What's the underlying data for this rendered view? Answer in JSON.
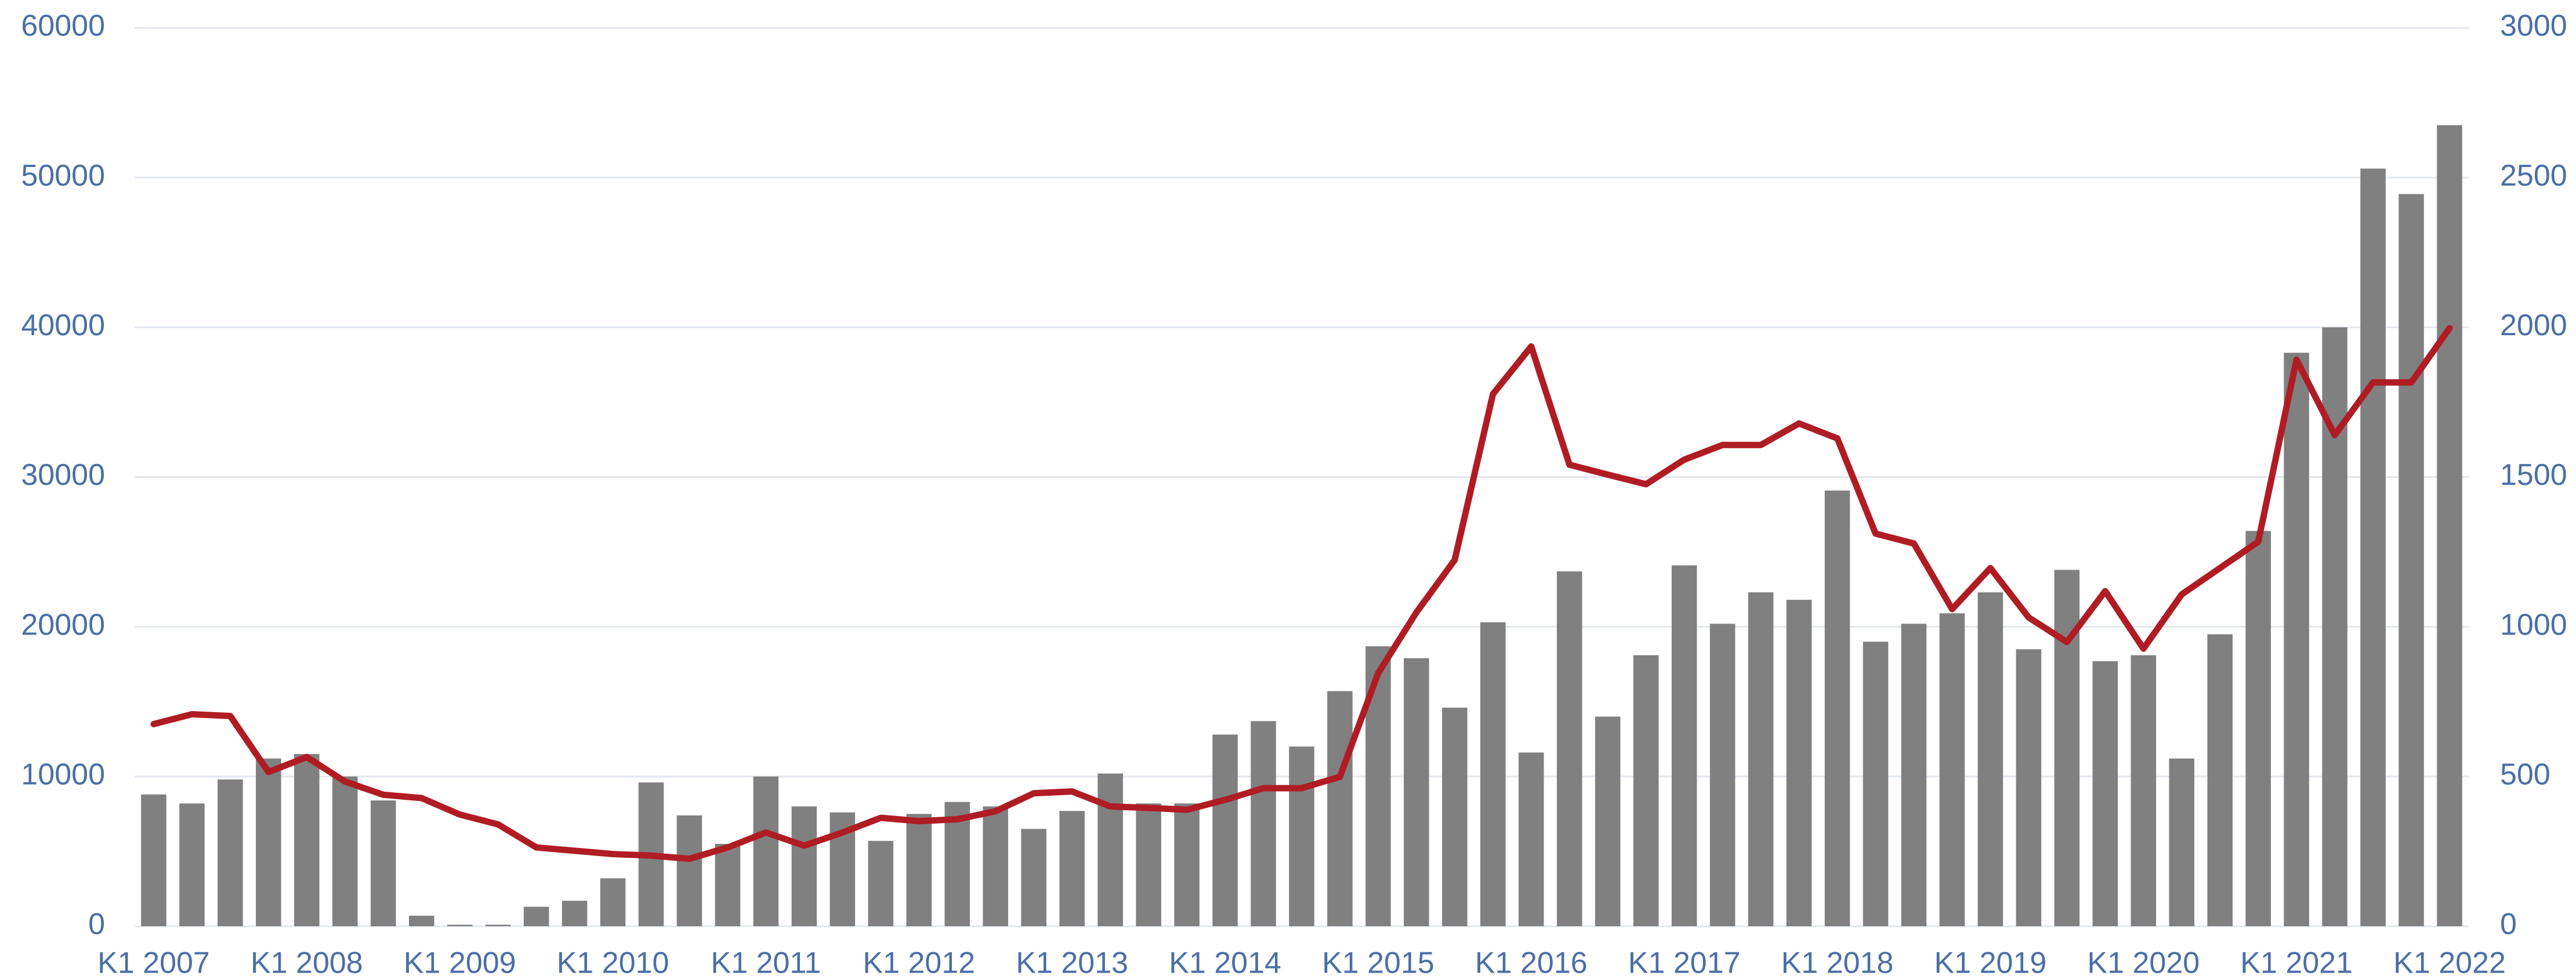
{
  "chart_data": {
    "type": "bar_line",
    "categories": [
      "K1 2007",
      null,
      null,
      null,
      "K1 2008",
      null,
      null,
      null,
      "K1 2009",
      null,
      null,
      null,
      "K1 2010",
      null,
      null,
      null,
      "K1 2011",
      null,
      null,
      null,
      "K1 2012",
      null,
      null,
      null,
      "K1 2013",
      null,
      null,
      null,
      "K1 2014",
      null,
      null,
      null,
      "K1 2015",
      null,
      null,
      null,
      "K1 2016",
      null,
      null,
      null,
      "K1 2017",
      null,
      null,
      null,
      "K1 2018",
      null,
      null,
      null,
      "K1 2019",
      null,
      null,
      null,
      "K1 2020",
      null,
      null,
      null,
      "K1 2021",
      null,
      null,
      null,
      "K1 2022"
    ],
    "series": [
      {
        "type": "bar",
        "color": "#808080",
        "values": [
          8800,
          8200,
          9800,
          11200,
          11500,
          10000,
          8400,
          700,
          100,
          100,
          1300,
          1700,
          3200,
          9600,
          7400,
          5500,
          10000,
          8000,
          7600,
          5700,
          7500,
          8300,
          8000,
          6500,
          7700,
          10200,
          8200,
          8200,
          12800,
          13700,
          12000,
          15700,
          18700,
          17900,
          14600,
          20300,
          11600,
          23700,
          14000,
          18100,
          24100,
          20200,
          22300,
          21800,
          29100,
          19000,
          20200,
          20900,
          22300,
          18500,
          23800,
          17700,
          18100,
          11200,
          19500,
          26400,
          38300,
          40000,
          50600,
          48900,
          53500
        ]
      },
      {
        "type": "line",
        "axis": "y2",
        "color": "#b01c23",
        "values": [
          675,
          708,
          702,
          515,
          565,
          483,
          439,
          428,
          373,
          340,
          263,
          252,
          241,
          236,
          225,
          263,
          313,
          269,
          313,
          362,
          351,
          357,
          384,
          444,
          450,
          400,
          395,
          389,
          422,
          461,
          461,
          499,
          845,
          1048,
          1223,
          1777,
          1936,
          1541,
          1508,
          1476,
          1558,
          1607,
          1607,
          1679,
          1629,
          1311,
          1278,
          1059,
          1196,
          1031,
          949,
          1119,
          927,
          1108,
          1196,
          1284,
          1892,
          1640,
          1816,
          1816,
          1997
        ]
      }
    ],
    "ylim": [
      0,
      60000
    ],
    "yticks": [
      0,
      10000,
      20000,
      30000,
      40000,
      50000,
      60000
    ],
    "y2lim": [
      0,
      3000
    ],
    "y2ticks": [
      0,
      500,
      1000,
      1500,
      2000,
      2500,
      3000
    ],
    "grid": true
  }
}
